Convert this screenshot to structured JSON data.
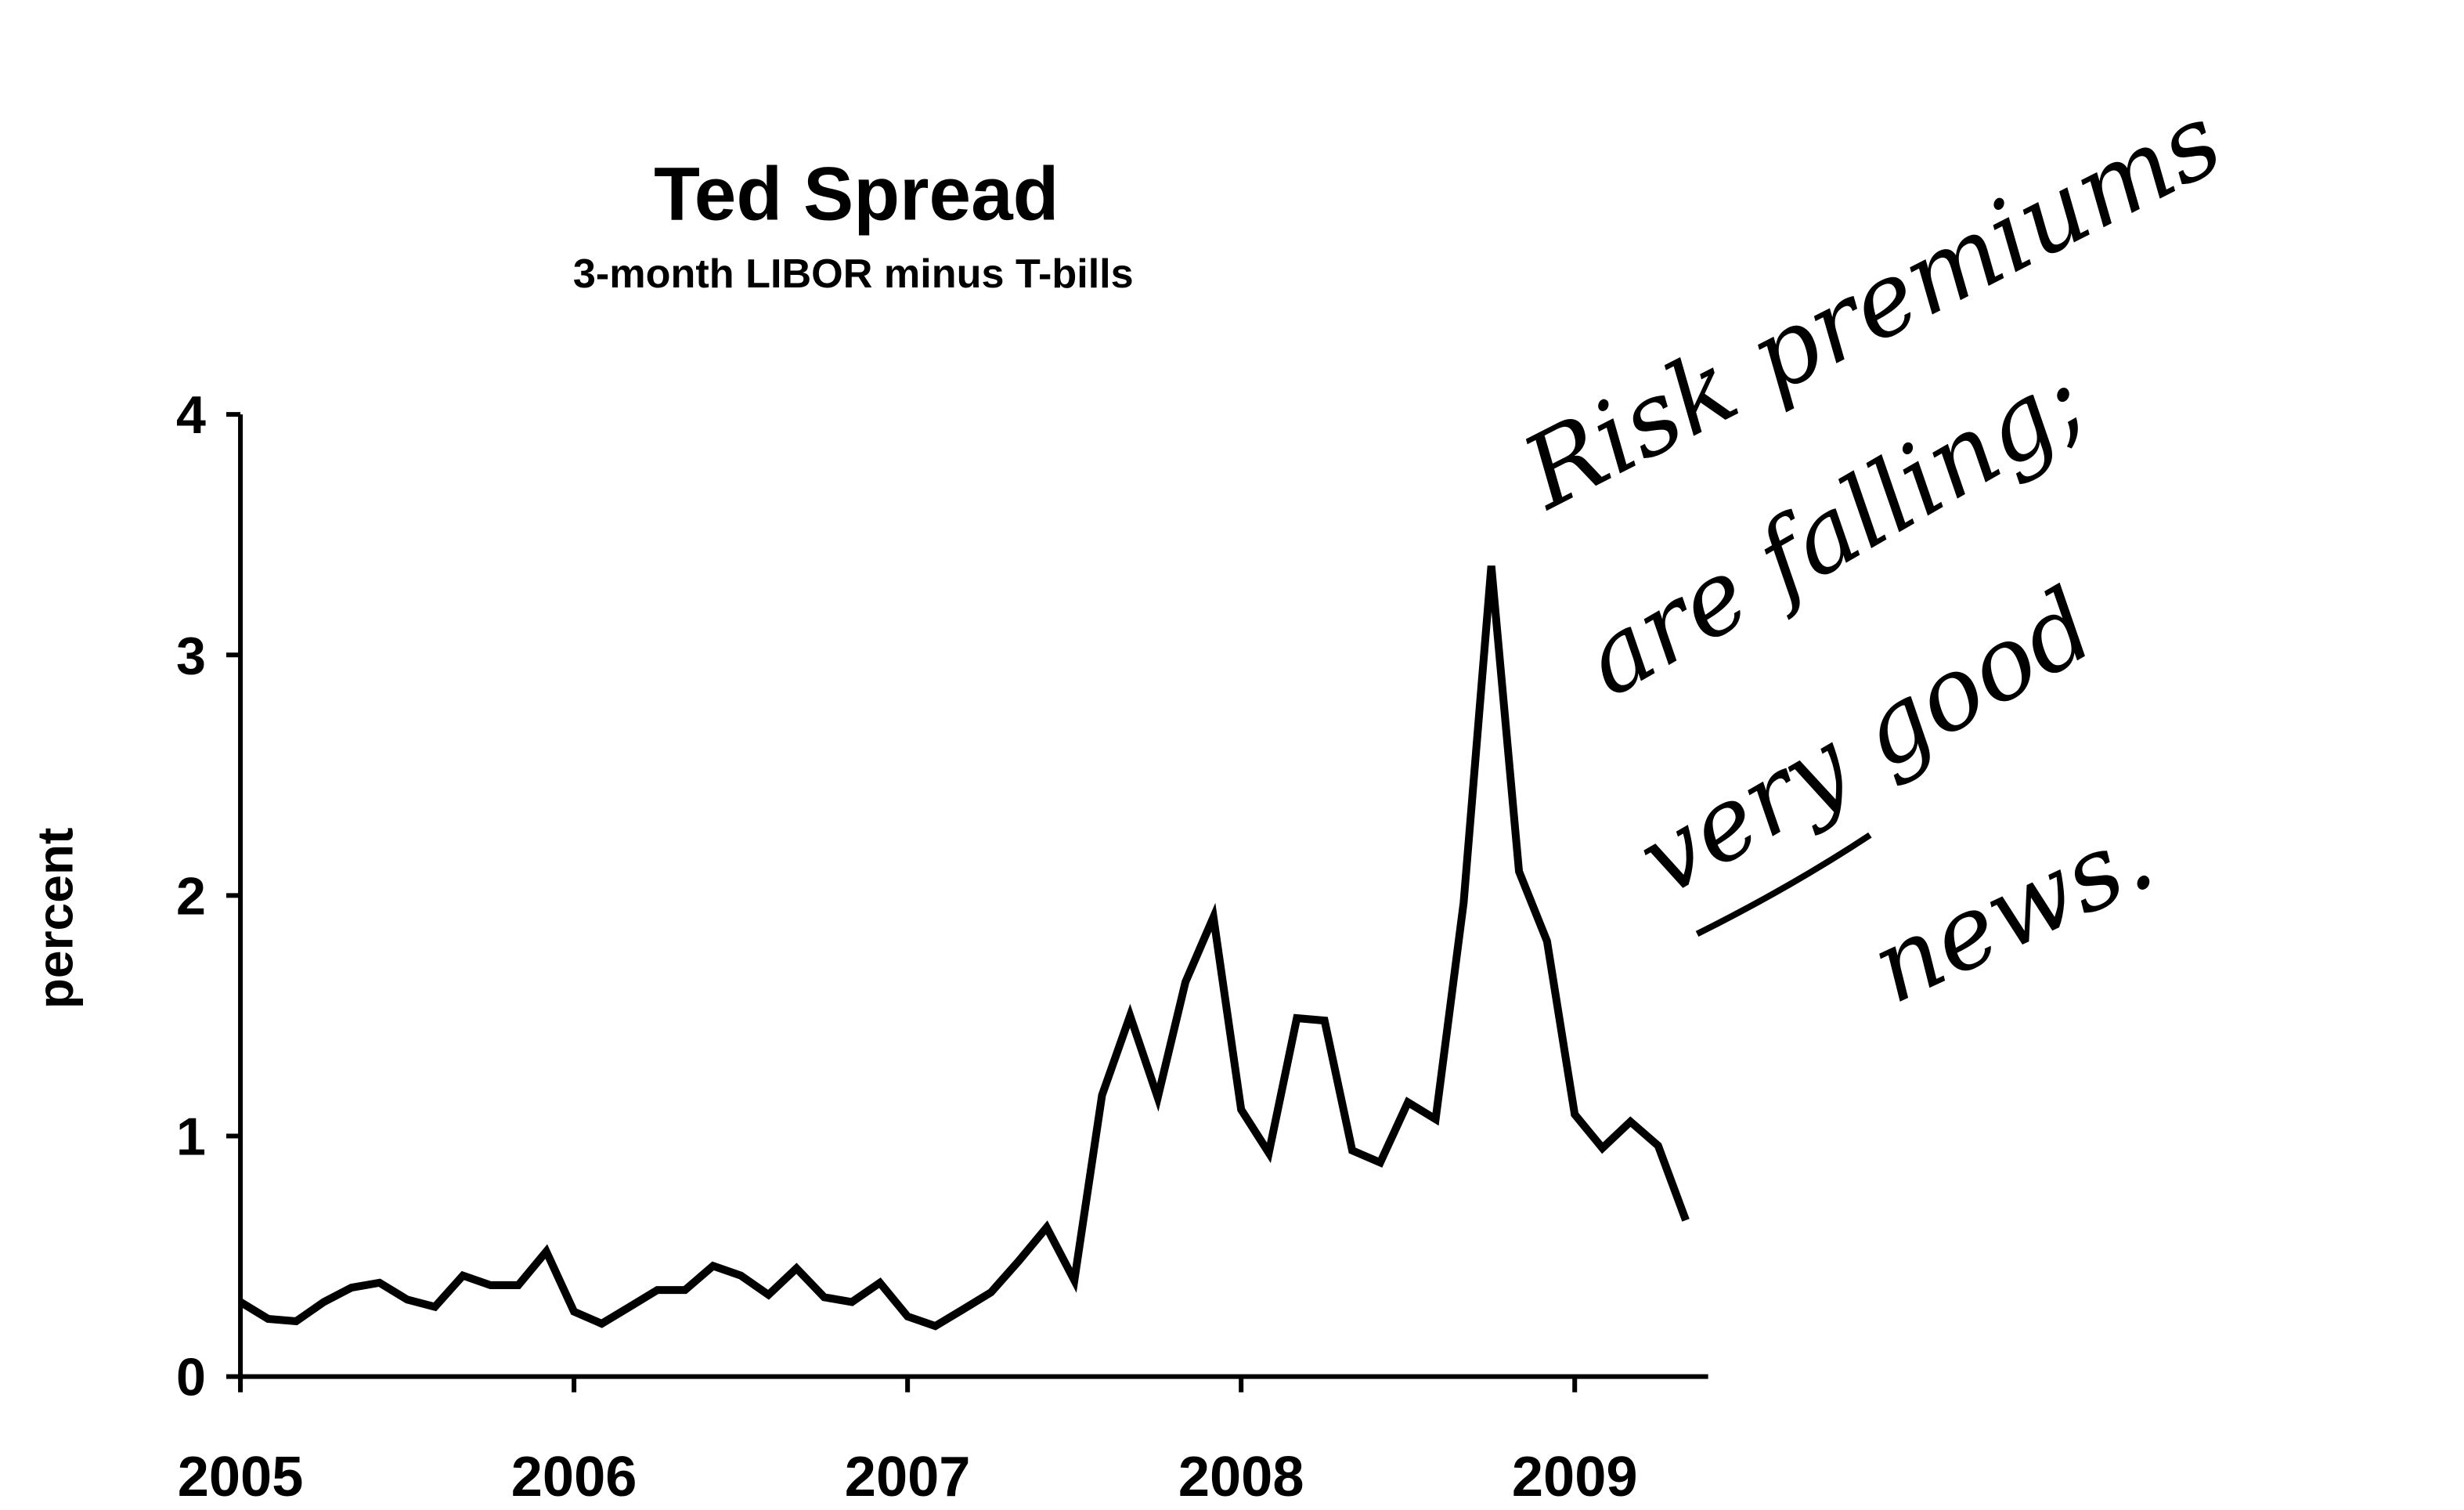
{
  "chart_data": {
    "type": "line",
    "title": "Ted Spread",
    "subtitle": "3-month LIBOR minus T-bills",
    "y_label": "percent",
    "annotation": [
      "Risk premiums",
      "are falling;",
      "very good",
      "news."
    ],
    "xlim": [
      2005,
      2009.4
    ],
    "xticks": [
      2005,
      2006,
      2007,
      2008,
      2009
    ],
    "ylim": [
      0,
      4
    ],
    "yticks": [
      0,
      1,
      2,
      3,
      4
    ],
    "x": [
      2005,
      2005.083,
      2005.167,
      2005.25,
      2005.333,
      2005.417,
      2005.5,
      2005.583,
      2005.667,
      2005.75,
      2005.833,
      2005.917,
      2006,
      2006.083,
      2006.167,
      2006.25,
      2006.333,
      2006.417,
      2006.5,
      2006.583,
      2006.667,
      2006.75,
      2006.833,
      2006.917,
      2007,
      2007.083,
      2007.167,
      2007.25,
      2007.333,
      2007.417,
      2007.5,
      2007.583,
      2007.667,
      2007.75,
      2007.833,
      2007.917,
      2008,
      2008.083,
      2008.167,
      2008.25,
      2008.333,
      2008.417,
      2008.5,
      2008.583,
      2008.667,
      2008.75,
      2008.833,
      2008.917,
      2009,
      2009.083,
      2009.167,
      2009.25,
      2009.333
    ],
    "series": [
      {
        "color": "#000000",
        "values": [
          0.31,
          0.24,
          0.23,
          0.31,
          0.37,
          0.39,
          0.32,
          0.29,
          0.42,
          0.38,
          0.38,
          0.52,
          0.27,
          0.22,
          0.29,
          0.36,
          0.36,
          0.46,
          0.42,
          0.34,
          0.45,
          0.33,
          0.31,
          0.39,
          0.25,
          0.21,
          0.28,
          0.35,
          0.48,
          0.62,
          0.4,
          1.17,
          1.5,
          1.16,
          1.64,
          1.91,
          1.11,
          0.93,
          1.49,
          1.48,
          0.94,
          0.89,
          1.14,
          1.07,
          1.97,
          3.37,
          2.1,
          1.81,
          1.09,
          0.95,
          1.06,
          0.96,
          0.65
        ]
      }
    ]
  }
}
